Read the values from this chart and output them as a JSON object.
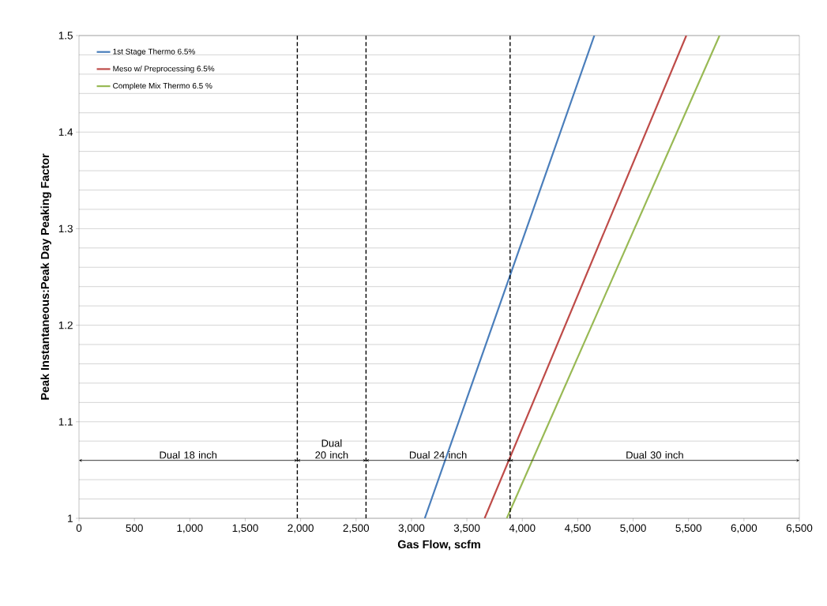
{
  "chart_data": {
    "type": "line",
    "xlabel": "Gas Flow, scfm",
    "ylabel": "Peak Instantaneous:Peak Day Peaking Factor",
    "series": [
      {
        "name": "1st Stage Thermo  6.5%",
        "color": "#4a7ebb",
        "x": [
          3120,
          4650
        ],
        "values": [
          1,
          1.5
        ]
      },
      {
        "name": "Meso w/ Preprocessing 6.5%",
        "color": "#be4b48",
        "x": [
          3660,
          5480
        ],
        "values": [
          1,
          1.5
        ]
      },
      {
        "name": "Complete Mix Thermo  6.5 %",
        "color": "#98b954",
        "x": [
          3860,
          5780
        ],
        "values": [
          1,
          1.5
        ]
      }
    ],
    "xlim": [
      0,
      6500
    ],
    "xticks": [
      0,
      500,
      {
        "value": 1000,
        "label": "1,000"
      },
      {
        "value": 1500,
        "label": "1,500"
      },
      {
        "value": 2000,
        "label": "2,000"
      },
      {
        "value": 2500,
        "label": "2,500"
      },
      {
        "value": 3000,
        "label": "3,000"
      },
      {
        "value": 3500,
        "label": "3,500"
      },
      {
        "value": 4000,
        "label": "4,000"
      },
      {
        "value": 4500,
        "label": "4,500"
      },
      {
        "value": 5000,
        "label": "5,000"
      },
      {
        "value": 5500,
        "label": "5,500"
      },
      {
        "value": 6000,
        "label": "6,000"
      },
      {
        "value": 6500,
        "label": "6,500"
      }
    ],
    "ylim": [
      1,
      1.5
    ],
    "yticks": [
      1,
      1.1,
      1.2,
      1.3,
      1.4,
      1.5
    ],
    "ref_lines": [
      {
        "axis": "x",
        "value": 1970,
        "color": "#000000",
        "line_style": "dashed"
      },
      {
        "axis": "x",
        "value": 2590,
        "color": "#000000",
        "line_style": "dashed"
      },
      {
        "axis": "x",
        "value": 3890,
        "color": "#000000",
        "line_style": "dashed"
      }
    ],
    "annotations": [
      "Dual 18 inch",
      "Dual 20 inch",
      "Dual 24 inch",
      "Dual 30 inch"
    ],
    "grid": "y",
    "legend": "top left",
    "marker": "none",
    "line_style": "solid"
  }
}
